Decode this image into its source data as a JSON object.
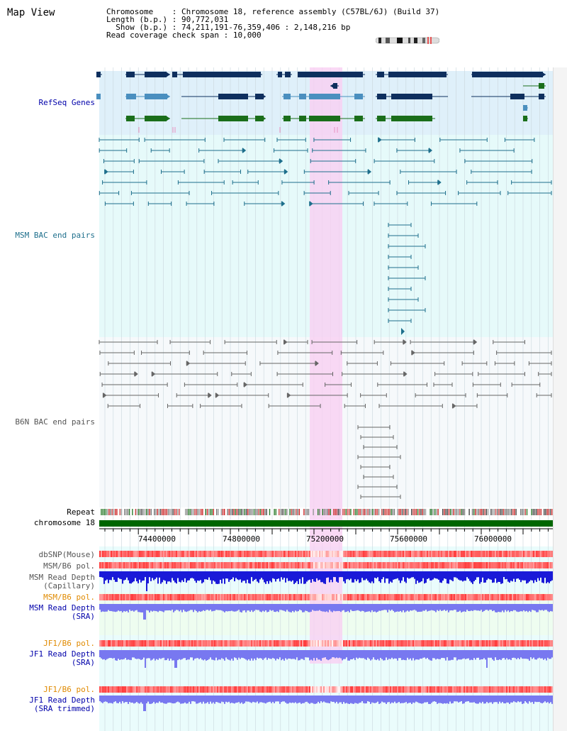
{
  "header": {
    "title": "Map View",
    "chromosome_label": "Chromosome",
    "chromosome_value": "Chromosome 18, reference assembly (C57BL/6J) (Build 37)",
    "length_label": "Length (b.p.)",
    "length_value": "90,772,031",
    "show_label": "Show (b.p.)",
    "show_value": "74,211,191-76,359,406 : 2,148,216 bp",
    "coverage_label": "Read coverage check span",
    "coverage_value": "10,000"
  },
  "tracks": {
    "refseq": "RefSeq Genes",
    "msm_bac": "MSM BAC end pairs",
    "b6n_bac": "B6N BAC end pairs",
    "repeat": "Repeat",
    "chromosome": "chromosome 18",
    "dbsnp": "dbSNP(Mouse)",
    "msm_b6_pol": "MSM/B6 pol.",
    "msm_depth_cap_1": "MSM Read Depth",
    "msm_depth_cap_2": "(Capillary)",
    "msm_b6_pol2": "MSM/B6 pol.",
    "msm_depth_sra_1": "MSM Read Depth",
    "msm_depth_sra_2": "(SRA)",
    "jf1_b6_pol": "JF1/B6 pol.",
    "jf1_depth_sra_1": "JF1 Read Depth",
    "jf1_depth_sra_2": "(SRA)",
    "jf1_b6_pol2": "JF1/B6 pol.",
    "jf1_depth_trim_1": "JF1 Read Depth",
    "jf1_depth_trim_2": "(SRA trimmed)"
  },
  "axis": {
    "ticks": [
      "74400000",
      "74800000",
      "75200000",
      "75600000",
      "76000000"
    ]
  },
  "colors": {
    "refseq_bg": "#dff0fa",
    "msm_bg": "#e6fafa",
    "b6n_bg": "#f6f9fb",
    "highlight": "#f9d0f2",
    "gene_dark": "#0e2f5e",
    "gene_mid": "#4a8fbf",
    "gene_green": "#1a6e1a",
    "msm_line": "#1e6f8c",
    "b6n_line": "#666666",
    "label_blue": "#0000aa",
    "label_teal": "#1e6f8c",
    "label_orange": "#e08a00",
    "chrom_green": "#006600",
    "depth_blue": "#0000ff",
    "depth_light": "#7878f0"
  }
}
